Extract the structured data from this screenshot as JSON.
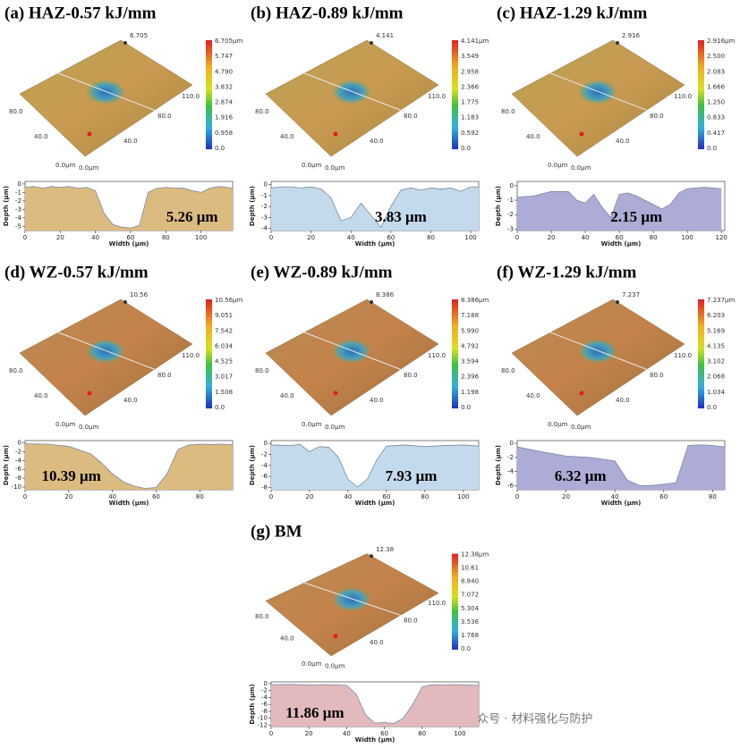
{
  "chart_data": [
    {
      "type": "area",
      "title": "(a) HAZ-0.57 kJ/mm",
      "annotation": "5.26 μm",
      "xlabel": "Width (μm)",
      "ylabel": "Depth (μm)",
      "color": "#dcbb80",
      "x": [
        0,
        5,
        10,
        15,
        20,
        25,
        30,
        35,
        40,
        45,
        50,
        55,
        60,
        65,
        70,
        75,
        80,
        85,
        90,
        95,
        100,
        105,
        110,
        115,
        118
      ],
      "values": [
        -0.4,
        -0.3,
        -0.5,
        -0.3,
        -0.4,
        -0.3,
        -0.5,
        -0.4,
        -0.8,
        -3.5,
        -4.8,
        -5.1,
        -5.2,
        -4.9,
        -1.0,
        -0.5,
        -0.4,
        -0.5,
        -0.5,
        -0.8,
        -1.0,
        -0.5,
        -0.3,
        -0.4,
        -0.5
      ],
      "xlim": [
        0,
        118
      ],
      "xticks": [
        0,
        20,
        40,
        60,
        80,
        100
      ],
      "ylim": [
        -5.5,
        0.3
      ],
      "yticks": [
        0,
        -1,
        -2,
        -3,
        -4,
        -5
      ]
    },
    {
      "type": "area",
      "title": "(b) HAZ-0.89 kJ/mm",
      "annotation": "3.83 μm",
      "xlabel": "Width (μm)",
      "ylabel": "Depth (μm)",
      "color": "#c3daec",
      "x": [
        0,
        5,
        10,
        15,
        20,
        25,
        30,
        35,
        40,
        45,
        50,
        55,
        60,
        65,
        70,
        75,
        80,
        85,
        90,
        95,
        100,
        104
      ],
      "values": [
        -0.3,
        -0.2,
        -0.2,
        -0.3,
        -0.2,
        -0.4,
        -1.2,
        -3.3,
        -3.0,
        -1.7,
        -2.8,
        -3.9,
        -2.0,
        -0.5,
        -0.3,
        -0.5,
        -0.3,
        -0.4,
        -0.3,
        -0.6,
        -0.2,
        -0.2
      ],
      "xlim": [
        0,
        104
      ],
      "xticks": [
        0,
        20,
        40,
        60,
        80,
        100
      ],
      "ylim": [
        -4.2,
        0.3
      ],
      "yticks": [
        0,
        -1,
        -2,
        -3,
        -4
      ]
    },
    {
      "type": "area",
      "title": "(c) HAZ-1.29 kJ/mm",
      "annotation": "2.15 μm",
      "xlabel": "Width (μm)",
      "ylabel": "Depth (μm)",
      "color": "#adacd6",
      "x": [
        0,
        10,
        20,
        30,
        35,
        40,
        45,
        50,
        55,
        60,
        65,
        70,
        75,
        80,
        85,
        90,
        95,
        100,
        110,
        120
      ],
      "values": [
        -0.8,
        -0.7,
        -0.4,
        -0.4,
        -1.0,
        -1.2,
        -0.6,
        -1.5,
        -2.2,
        -0.6,
        -0.5,
        -0.7,
        -1.0,
        -1.3,
        -1.6,
        -1.3,
        -0.5,
        -0.2,
        -0.1,
        -0.2
      ],
      "xlim": [
        0,
        122
      ],
      "xticks": [
        0,
        20,
        40,
        60,
        80,
        100,
        120
      ],
      "ylim": [
        -3.1,
        0.3
      ],
      "yticks": [
        0,
        -1,
        -2,
        -3
      ]
    },
    {
      "type": "area",
      "title": "(d) WZ-0.57 kJ/mm",
      "annotation": "10.39 μm",
      "xlabel": "Width (μm)",
      "ylabel": "Depth (μm)",
      "color": "#dcbb80",
      "x": [
        0,
        10,
        20,
        30,
        35,
        40,
        45,
        50,
        55,
        60,
        65,
        70,
        75,
        80,
        85,
        90,
        95
      ],
      "values": [
        -0.2,
        -0.3,
        -0.8,
        -2.5,
        -4.5,
        -7,
        -8.8,
        -9.8,
        -10.3,
        -10.1,
        -7,
        -1.5,
        -0.5,
        -0.3,
        -0.4,
        -0.3,
        -0.4
      ],
      "xlim": [
        0,
        95
      ],
      "xticks": [
        0,
        20,
        40,
        60,
        80
      ],
      "ylim": [
        -10.6,
        0.5
      ],
      "yticks": [
        0,
        -2,
        -4,
        -6,
        -8,
        -10
      ]
    },
    {
      "type": "area",
      "title": "(e) WZ-0.89 kJ/mm",
      "annotation": "7.93 μm",
      "xlabel": "Width (μm)",
      "ylabel": "Depth (μm)",
      "color": "#c3daec",
      "x": [
        0,
        10,
        15,
        20,
        25,
        30,
        35,
        40,
        45,
        50,
        55,
        60,
        65,
        70,
        80,
        90,
        100,
        108
      ],
      "values": [
        -0.3,
        -0.4,
        -0.2,
        -1.5,
        -0.6,
        -0.7,
        -2.5,
        -6.5,
        -7.9,
        -6.5,
        -3,
        -0.5,
        -0.4,
        -0.3,
        -0.6,
        -0.4,
        -0.3,
        -0.5
      ],
      "xlim": [
        0,
        108
      ],
      "xticks": [
        0,
        20,
        40,
        60,
        80,
        100
      ],
      "ylim": [
        -8.4,
        0.5
      ],
      "yticks": [
        0,
        -2,
        -4,
        -6,
        -8
      ]
    },
    {
      "type": "area",
      "title": "(f) WZ-1.29 kJ/mm",
      "annotation": "6.32 μm",
      "xlabel": "Width (μm)",
      "ylabel": "Depth (μm)",
      "color": "#adacd6",
      "x": [
        0,
        10,
        20,
        30,
        40,
        45,
        50,
        55,
        60,
        65,
        70,
        75,
        80,
        85
      ],
      "values": [
        -0.5,
        -1.2,
        -1.8,
        -2.0,
        -2.5,
        -5.2,
        -6.0,
        -6.0,
        -5.8,
        -5.6,
        -0.3,
        -0.2,
        -0.3,
        -0.5
      ],
      "xlim": [
        0,
        85
      ],
      "xticks": [
        0,
        20,
        40,
        60,
        80
      ],
      "ylim": [
        -6.6,
        0.4
      ],
      "yticks": [
        0,
        -2,
        -4,
        -6
      ]
    },
    {
      "type": "area",
      "title": "(g) BM",
      "annotation": "11.86 μm",
      "xlabel": "Width (μm)",
      "ylabel": "Depth (μm)",
      "color": "#e2b9bc",
      "x": [
        0,
        10,
        20,
        30,
        40,
        45,
        50,
        55,
        60,
        65,
        70,
        75,
        80,
        85,
        90,
        100,
        110
      ],
      "values": [
        -0.3,
        -0.2,
        -0.4,
        -0.3,
        -0.5,
        -3,
        -9,
        -11.4,
        -11.2,
        -11.5,
        -10,
        -6,
        -1,
        -0.3,
        -0.4,
        -0.3,
        -0.5
      ],
      "xlim": [
        0,
        110
      ],
      "xticks": [
        0,
        20,
        40,
        60,
        80,
        100
      ],
      "ylim": [
        -12.4,
        0.5
      ],
      "yticks": [
        0,
        -2,
        -4,
        -6,
        -8,
        -10,
        -12
      ]
    }
  ],
  "surfaces": [
    {
      "peak": "6.705",
      "colorbar": [
        "6.705μm",
        "5.747",
        "4.790",
        "3.832",
        "2.874",
        "1.916",
        "0.958",
        "0.0"
      ],
      "axis_labels": [
        "80.0",
        "40.0",
        "0.0μm",
        "0.0μm",
        "40.0",
        "80.0",
        "110.0"
      ]
    },
    {
      "peak": "4.141",
      "colorbar": [
        "4.141μm",
        "3.549",
        "2.958",
        "2.366",
        "1.775",
        "1.183",
        "0.592",
        "0.0"
      ],
      "axis_labels": [
        "80.0",
        "40.0",
        "0.0μm",
        "0.0μm",
        "40.0",
        "80.0",
        "110.0"
      ]
    },
    {
      "peak": "2.916",
      "colorbar": [
        "2.916μm",
        "2.500",
        "2.083",
        "1.666",
        "1.250",
        "0.833",
        "0.417",
        "0.0"
      ],
      "axis_labels": [
        "80.0",
        "40.0",
        "0.0μm",
        "0.0μm",
        "40.0",
        "80.0",
        "110.0"
      ]
    },
    {
      "peak": "10.56",
      "colorbar": [
        "10.56μm",
        "9.051",
        "7.542",
        "6.034",
        "4.525",
        "3.017",
        "1.508",
        "0.0"
      ],
      "axis_labels": [
        "80.0",
        "40.0",
        "0.0μm",
        "0.0μm",
        "40.0",
        "80.0",
        "110.0"
      ]
    },
    {
      "peak": "8.386",
      "colorbar": [
        "8.386μm",
        "7.188",
        "5.990",
        "4.792",
        "3.594",
        "2.396",
        "1.198",
        "0.0"
      ],
      "axis_labels": [
        "80.0",
        "40.0",
        "0.0μm",
        "0.0μm",
        "40.0",
        "80.0",
        "110.0"
      ]
    },
    {
      "peak": "7.237",
      "colorbar": [
        "7.237μm",
        "6.203",
        "5.169",
        "4.135",
        "3.102",
        "2.068",
        "1.034",
        "0.0"
      ],
      "axis_labels": [
        "80.0",
        "40.0",
        "0.0μm",
        "0.0μm",
        "40.0",
        "80.0",
        "110.0"
      ]
    },
    {
      "peak": "12.38",
      "colorbar": [
        "12.38μm",
        "10.61",
        "8.840",
        "7.072",
        "5.304",
        "3.536",
        "1.768",
        "0.0"
      ],
      "axis_labels": [
        "80.0",
        "40.0",
        "0.0μm",
        "0.0μm",
        "40.0",
        "80.0",
        "110.0"
      ]
    }
  ],
  "watermark": "公众号 · 材料强化与防护"
}
